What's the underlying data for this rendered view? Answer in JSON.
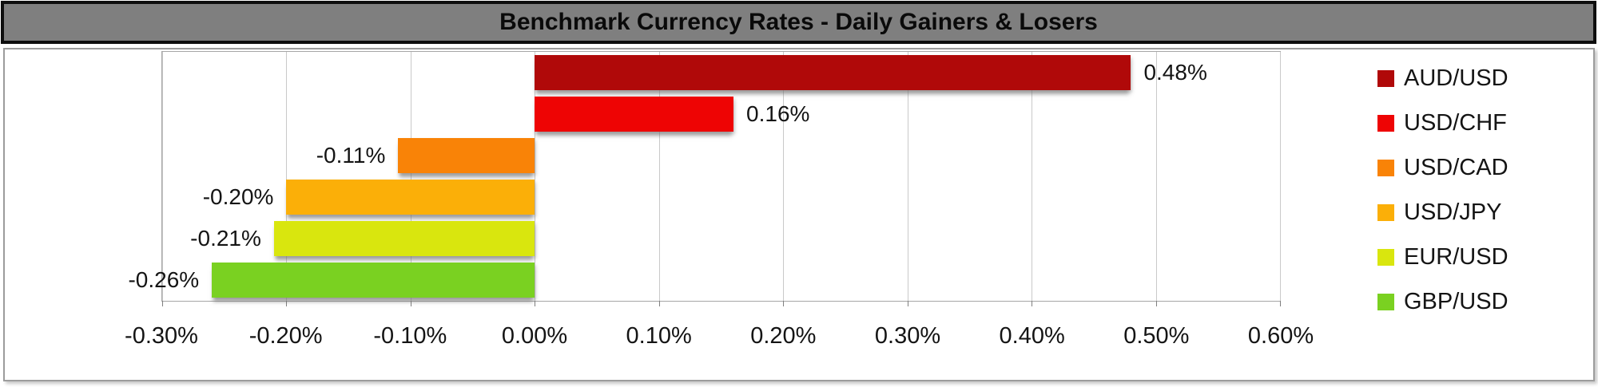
{
  "chart_data": {
    "type": "bar",
    "orientation": "horizontal",
    "title": "Benchmark Currency Rates - Daily Gainers & Losers",
    "categories": [
      "AUD/USD",
      "USD/CHF",
      "USD/CAD",
      "USD/JPY",
      "EUR/USD",
      "GBP/USD"
    ],
    "values": [
      0.48,
      0.16,
      -0.11,
      -0.2,
      -0.21,
      -0.26
    ],
    "data_labels": [
      "0.48%",
      "0.16%",
      "-0.11%",
      "-0.20%",
      "-0.21%",
      "-0.26%"
    ],
    "bar_colors": [
      "#b00909",
      "#ee0404",
      "#f98307",
      "#fbaf08",
      "#d9e60e",
      "#7ad121"
    ],
    "xlabel": "",
    "ylabel": "",
    "xlim": [
      -0.3,
      0.6
    ],
    "x_ticks": [
      {
        "value": -0.3,
        "label": "-0.30%"
      },
      {
        "value": -0.2,
        "label": "-0.20%"
      },
      {
        "value": -0.1,
        "label": "-0.10%"
      },
      {
        "value": 0.0,
        "label": "0.00%"
      },
      {
        "value": 0.1,
        "label": "0.10%"
      },
      {
        "value": 0.2,
        "label": "0.20%"
      },
      {
        "value": 0.3,
        "label": "0.30%"
      },
      {
        "value": 0.4,
        "label": "0.40%"
      },
      {
        "value": 0.5,
        "label": "0.50%"
      },
      {
        "value": 0.6,
        "label": "0.60%"
      }
    ],
    "grid": true,
    "legend_position": "right"
  },
  "colors": {
    "title_background": "#7f7f7f",
    "title_border": "#0e0e0e",
    "frame_border": "#9c9c9c",
    "plot_border": "#a6a6a6",
    "gridline": "#c9c9c9",
    "text": "#141414"
  }
}
